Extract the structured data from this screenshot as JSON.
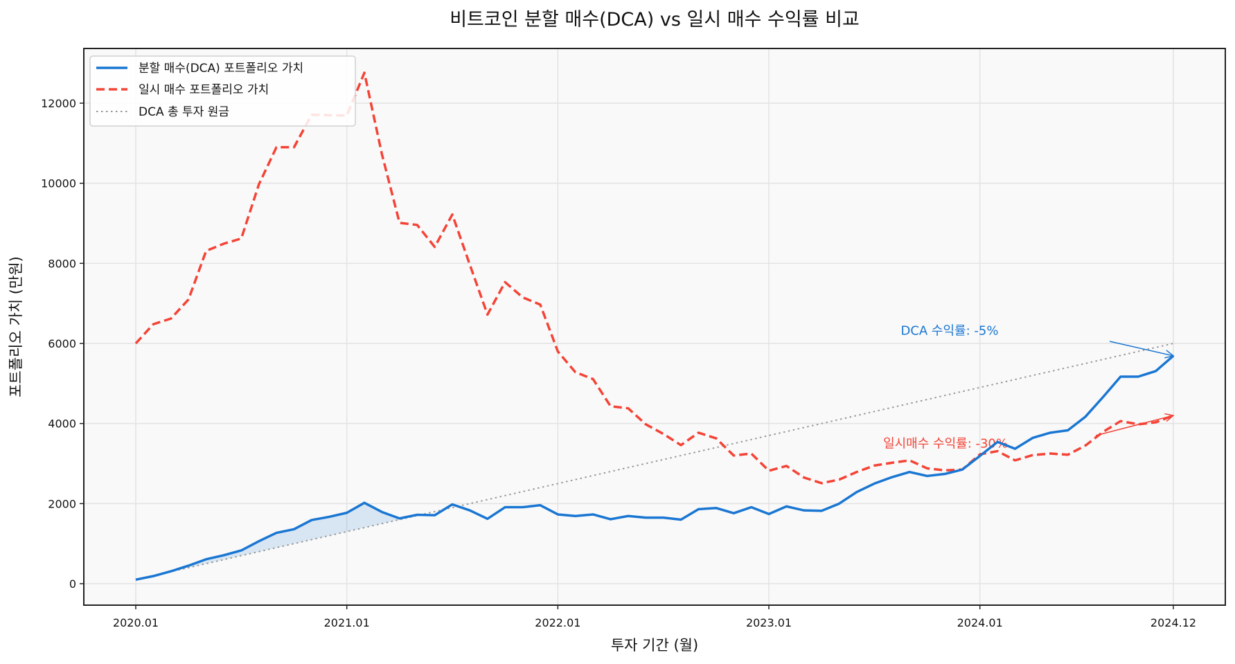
{
  "chart_data": {
    "type": "line",
    "title": "비트코인 분할 매수(DCA) vs 일시 매수 수익률 비교",
    "xlabel": "투자 기간 (월)",
    "ylabel": "포트폴리오 가치 (만원)",
    "xlim": [
      -2.5,
      62
    ],
    "ylim": [
      -500,
      13200
    ],
    "grid": true,
    "legend_position": "upper left",
    "x_ticks": [
      {
        "index": 0,
        "label": "2020.01"
      },
      {
        "index": 12,
        "label": "2021.01"
      },
      {
        "index": 24,
        "label": "2022.01"
      },
      {
        "index": 36,
        "label": "2023.01"
      },
      {
        "index": 48,
        "label": "2024.01"
      },
      {
        "index": 59,
        "label": "2024.12"
      }
    ],
    "y_ticks": [
      0,
      2000,
      4000,
      6000,
      8000,
      10000,
      12000
    ],
    "x": [
      "2020.01",
      "2020.02",
      "2020.03",
      "2020.04",
      "2020.05",
      "2020.06",
      "2020.07",
      "2020.08",
      "2020.09",
      "2020.10",
      "2020.11",
      "2020.12",
      "2021.01",
      "2021.02",
      "2021.03",
      "2021.04",
      "2021.05",
      "2021.06",
      "2021.07",
      "2021.08",
      "2021.09",
      "2021.10",
      "2021.11",
      "2021.12",
      "2022.01",
      "2022.02",
      "2022.03",
      "2022.04",
      "2022.05",
      "2022.06",
      "2022.07",
      "2022.08",
      "2022.09",
      "2022.10",
      "2022.11",
      "2022.12",
      "2023.01",
      "2023.02",
      "2023.03",
      "2023.04",
      "2023.05",
      "2023.06",
      "2023.07",
      "2023.08",
      "2023.09",
      "2023.10",
      "2023.11",
      "2023.12",
      "2024.01",
      "2024.02",
      "2024.03",
      "2024.04",
      "2024.05",
      "2024.06",
      "2024.07",
      "2024.08",
      "2024.09",
      "2024.10",
      "2024.11",
      "2024.12"
    ],
    "series": [
      {
        "name": "분할 매수(DCA) 포트폴리오 가치",
        "color": "#1976d2",
        "style": "solid",
        "width": 3.5,
        "values": [
          100,
          190,
          310,
          450,
          610,
          710,
          830,
          1060,
          1270,
          1360,
          1590,
          1670,
          1770,
          2020,
          1790,
          1630,
          1720,
          1710,
          1980,
          1830,
          1620,
          1910,
          1910,
          1960,
          1730,
          1690,
          1730,
          1610,
          1690,
          1650,
          1650,
          1600,
          1860,
          1890,
          1760,
          1910,
          1740,
          1930,
          1830,
          1820,
          2000,
          2290,
          2500,
          2660,
          2790,
          2690,
          2740,
          2850,
          3190,
          3540,
          3370,
          3640,
          3770,
          3830,
          4170,
          4660,
          5170,
          5170,
          5310,
          5690
        ]
      },
      {
        "name": "일시 매수 포트폴리오 가치",
        "color": "#f44336",
        "style": "dashed",
        "width": 3.5,
        "values": [
          6000,
          6480,
          6620,
          7100,
          8310,
          8490,
          8620,
          9970,
          10900,
          10900,
          11710,
          11700,
          11690,
          12760,
          10720,
          9010,
          8960,
          8410,
          9220,
          7960,
          6720,
          7530,
          7150,
          6970,
          5800,
          5280,
          5110,
          4430,
          4380,
          3980,
          3740,
          3460,
          3770,
          3630,
          3200,
          3250,
          2820,
          2940,
          2650,
          2510,
          2600,
          2790,
          2950,
          3020,
          3080,
          2880,
          2830,
          2850,
          3230,
          3310,
          3080,
          3210,
          3250,
          3220,
          3450,
          3790,
          4060,
          3980,
          4030,
          4200
        ]
      },
      {
        "name": "DCA 총 투자 원금",
        "color": "#999999",
        "style": "dotted",
        "width": 2,
        "values": [
          100,
          200,
          300,
          400,
          500,
          600,
          700,
          800,
          900,
          1000,
          1100,
          1200,
          1300,
          1400,
          1500,
          1600,
          1700,
          1800,
          1900,
          2000,
          2100,
          2200,
          2300,
          2400,
          2500,
          2600,
          2700,
          2800,
          2900,
          3000,
          3100,
          3200,
          3300,
          3400,
          3500,
          3600,
          3700,
          3800,
          3900,
          4000,
          4100,
          4200,
          4300,
          4400,
          4500,
          4600,
          4700,
          4800,
          4900,
          5000,
          5100,
          5200,
          5300,
          5400,
          5500,
          5600,
          5700,
          5800,
          5900,
          6000
        ]
      }
    ],
    "fill_between": {
      "series_a": 0,
      "series_b": 2,
      "where": "a>b",
      "color": "#1976d2",
      "opacity": 0.15
    },
    "annotations": [
      {
        "text": "DCA 수익률: -5%",
        "color": "#1976d2",
        "text_x": 43.5,
        "text_y": 6220,
        "arrow_to_x": 59,
        "arrow_to_y": 5690
      },
      {
        "text": "일시매수 수익률: -30%",
        "color": "#f44336",
        "text_x": 42.5,
        "text_y": 3400,
        "arrow_to_x": 59,
        "arrow_to_y": 4200
      }
    ]
  },
  "colors": {
    "plot_background": "#f9f9f9",
    "grid": "#e3e3e3",
    "axis": "#222222"
  }
}
